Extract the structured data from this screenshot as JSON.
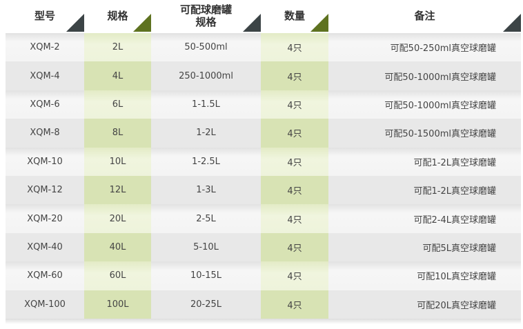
{
  "headers": [
    "型号",
    "规格",
    "可配球磨罐\n规格",
    "数量",
    "备注"
  ],
  "rows": [
    [
      "XQM-2",
      "2L",
      "50-500ml",
      "4只",
      "可配50-250ml真空球磨罐"
    ],
    [
      "XQM-4",
      "4L",
      "250-1000ml",
      "4只",
      "可配50-1000ml真空球磨罐"
    ],
    [
      "XQM-6",
      "6L",
      "1-1.5L",
      "4只",
      "可配50-1000ml真空球磨罐"
    ],
    [
      "XQM-8",
      "8L",
      "1-2L",
      "4只",
      "可配50-1500ml真空球磨罐"
    ],
    [
      "XQM-10",
      "10L",
      "1-2.5L",
      "4只",
      "可配1-2L真空球磨罐"
    ],
    [
      "XQM-12",
      "12L",
      "1-3L",
      "4只",
      "可配1-2L真空球磨罐"
    ],
    [
      "XQM-20",
      "20L",
      "2-5L",
      "4只",
      "可配2-4L真空球磨罐"
    ],
    [
      "XQM-40",
      "40L",
      "5-10L",
      "4只",
      "可配5L真空球磨罐"
    ],
    [
      "XQM-60",
      "60L",
      "10-15L",
      "4只",
      "可配10L真空球磨罐"
    ],
    [
      "XQM-100",
      "100L",
      "20-25L",
      "4只",
      "可配20L真空球磨罐"
    ]
  ],
  "colors": {
    "header_corner_dark": "#3c4446",
    "header_corner_green": "#5e7220",
    "green_column": "#d8e3b4"
  }
}
